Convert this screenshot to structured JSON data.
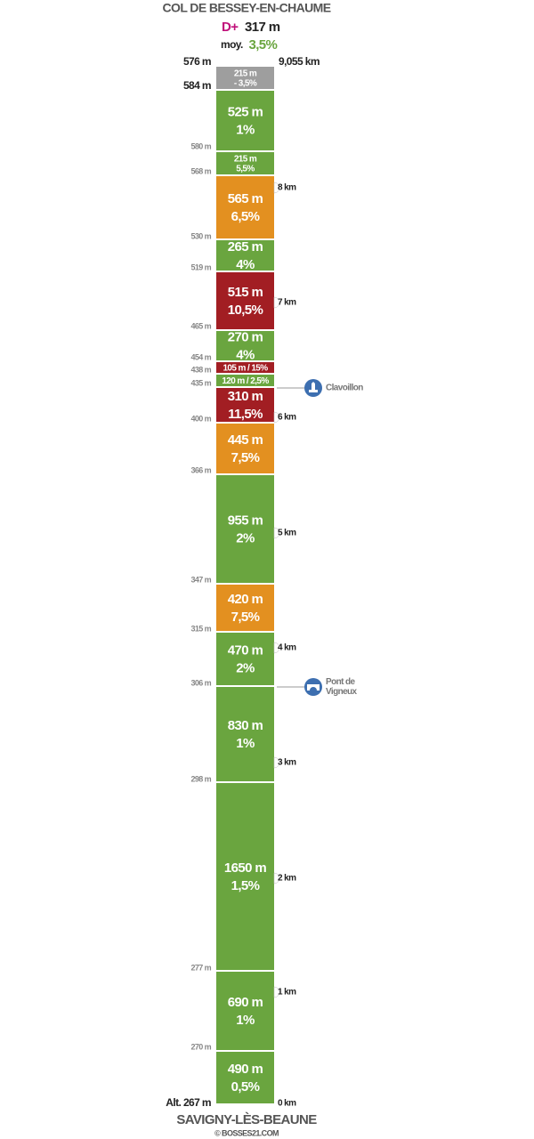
{
  "header": {
    "title": "COL DE BESSEY-EN-CHAUME",
    "gain_label": "D+",
    "gain": "317 m",
    "avg_label": "moy.",
    "avg": "3,5%",
    "gain_color": "#c0107a",
    "avg_color": "#6aa53f"
  },
  "segments": [
    {
      "lines": [
        "215 m",
        "- 3,5%"
      ],
      "color": "#9e9e9e"
    },
    {
      "lines": [
        "525 m",
        "1%"
      ],
      "color": "#6aa53f"
    },
    {
      "lines": [
        "215 m",
        "5,5%"
      ],
      "color": "#6aa53f"
    },
    {
      "lines": [
        "565 m",
        "6,5%"
      ],
      "color": "#e39020"
    },
    {
      "lines": [
        "265 m",
        "4%"
      ],
      "color": "#6aa53f"
    },
    {
      "lines": [
        "515 m",
        "10,5%"
      ],
      "color": "#a21e23"
    },
    {
      "lines": [
        "270 m",
        "4%"
      ],
      "color": "#6aa53f"
    },
    {
      "lines": [
        "105 m / 15%"
      ],
      "color": "#a21e23"
    },
    {
      "lines": [
        "120 m / 2,5%"
      ],
      "color": "#6aa53f"
    },
    {
      "lines": [
        "310 m",
        "11,5%"
      ],
      "color": "#a21e23"
    },
    {
      "lines": [
        "445 m",
        "7,5%"
      ],
      "color": "#e39020"
    },
    {
      "lines": [
        "955 m",
        "2%"
      ],
      "color": "#6aa53f"
    },
    {
      "lines": [
        "420 m",
        "7,5%"
      ],
      "color": "#e39020"
    },
    {
      "lines": [
        "470 m",
        "2%"
      ],
      "color": "#6aa53f"
    },
    {
      "lines": [
        "830 m",
        "1%"
      ],
      "color": "#6aa53f"
    },
    {
      "lines": [
        "1650 m",
        "1,5%"
      ],
      "color": "#6aa53f"
    },
    {
      "lines": [
        "690 m",
        "1%"
      ],
      "color": "#6aa53f"
    },
    {
      "lines": [
        "490 m",
        "0,5%"
      ],
      "color": "#6aa53f"
    }
  ],
  "altitudes": [
    "576 m",
    "584 m",
    "580 m",
    "568 m",
    "530 m",
    "519 m",
    "465 m",
    "454 m",
    "438 m",
    "435 m",
    "400 m",
    "366 m",
    "347 m",
    "315 m",
    "306 m",
    "298 m",
    "277 m",
    "270 m",
    "Alt. 267 m"
  ],
  "km_markers": [
    "9,055 km",
    "8 km",
    "7 km",
    "6 km",
    "5 km",
    "4 km",
    "3 km",
    "2 km",
    "1 km",
    "0 km"
  ],
  "pois": [
    {
      "lines": [
        "Clavoillon"
      ]
    },
    {
      "lines": [
        "Pont de",
        "Vigneux"
      ]
    }
  ],
  "footer": {
    "name": "SAVIGNY-LÈS-BEAUNE",
    "credit": "© BOSSES21.COM"
  }
}
